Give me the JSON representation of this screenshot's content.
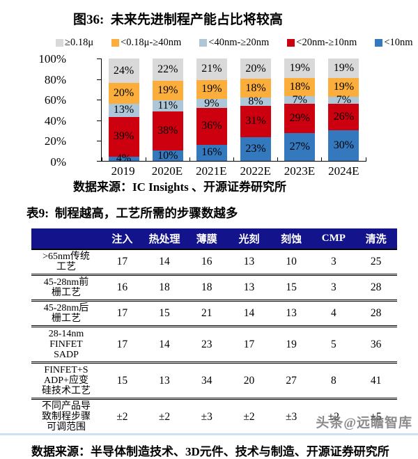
{
  "watermark": "头条@远瞻智库",
  "colors": {
    "table_header_bg": "#13138B",
    "axis": "#000000",
    "watermark_gray": "#6E6E6E",
    "bottom_strip": "#CFE0F2"
  },
  "chart_data": [
    {
      "type": "bar",
      "stacked": true,
      "title": "图36:  未来先进制程产能占比将较高",
      "source": "数据来源：IC Insights 、开源证券研究所",
      "categories": [
        "2019",
        "2020E",
        "2021E",
        "2022E",
        "2023E",
        "2024E"
      ],
      "series": [
        {
          "name": "<10nm",
          "color": "#3478BE",
          "values": [
            4,
            10,
            16,
            23,
            27,
            30
          ]
        },
        {
          "name": "<20nm-≥10nm",
          "color": "#CC000E",
          "values": [
            39,
            38,
            36,
            31,
            29,
            26
          ]
        },
        {
          "name": "<40nm-≥20nm",
          "color": "#ADC6D8",
          "values": [
            13,
            11,
            9,
            8,
            7,
            7
          ]
        },
        {
          "name": "<0.18μ-≥40nm",
          "color": "#FBAE3C",
          "values": [
            20,
            19,
            19,
            18,
            18,
            19
          ]
        },
        {
          "name": "≥0.18μ",
          "color": "#D9D9D9",
          "values": [
            24,
            22,
            21,
            20,
            19,
            19
          ]
        }
      ],
      "stack_order": "first series at bottom",
      "legend_order_left_to_right": [
        "≥0.18μ",
        "<0.18μ-≥40nm",
        "<40nm-≥20nm",
        "<20nm-≥10nm",
        "<10nm"
      ],
      "value_label_suffix": "%",
      "ylabel": "",
      "xlabel": "",
      "ylim": [
        0,
        100
      ],
      "y_ticks": [
        "0%",
        "20%",
        "40%",
        "60%",
        "80%",
        "100%"
      ],
      "grid": false,
      "legend_position": "top"
    },
    {
      "type": "table",
      "title": "表9:  制程越高，工艺所需的步骤数越多",
      "source": "数据来源：半导体制造技术、3D元件、技术与制造、开源证券研究所",
      "columns": [
        "注入",
        "热处理",
        "薄膜",
        "光刻",
        "刻蚀",
        "CMP",
        "清洗"
      ],
      "rows": [
        {
          "label": ">65nm传统\n工艺",
          "values": [
            "17",
            "14",
            "16",
            "13",
            "10",
            "3",
            "25"
          ]
        },
        {
          "label": "45-28nm前\n栅工艺",
          "values": [
            "16",
            "18",
            "18",
            "13",
            "15",
            "3",
            "28"
          ]
        },
        {
          "label": "45-28nm后\n栅工艺",
          "values": [
            "17",
            "15",
            "21",
            "14",
            "13",
            "4",
            "28"
          ]
        },
        {
          "label": "28-14nm\nFINFET\nSADP",
          "values": [
            "17",
            "14",
            "23",
            "17",
            "19",
            "5",
            "36"
          ]
        },
        {
          "label": "FINFET+S\nADP+应变\n硅技术工艺",
          "values": [
            "15",
            "13",
            "34",
            "20",
            "27",
            "8",
            "41"
          ]
        },
        {
          "label": "不同产品导\n致制程步骤\n可调范围",
          "values": [
            "±2",
            "±2",
            "±3",
            "±2",
            "±3",
            "±2",
            "±5"
          ]
        }
      ]
    }
  ]
}
